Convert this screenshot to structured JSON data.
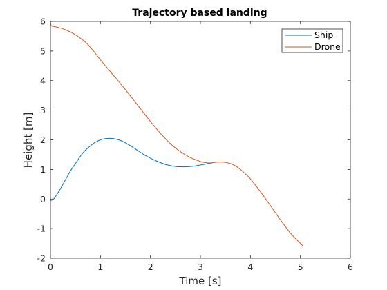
{
  "chart_data": {
    "type": "line",
    "title": "Trajectory based landing",
    "xlabel": "Time [s]",
    "ylabel": "Height [m]",
    "xlim": [
      0,
      6
    ],
    "ylim": [
      -2,
      6
    ],
    "xticks": [
      0,
      1,
      2,
      3,
      4,
      5,
      6
    ],
    "yticks": [
      -2,
      -1,
      0,
      1,
      2,
      3,
      4,
      5,
      6
    ],
    "grid": false,
    "legend_position": "top-right",
    "series": [
      {
        "name": "Ship",
        "color": "#0072bd",
        "x": [
          0,
          0.05,
          0.1,
          0.2,
          0.3,
          0.4,
          0.5,
          0.6,
          0.7,
          0.8,
          0.9,
          1.0,
          1.1,
          1.2,
          1.3,
          1.4,
          1.5,
          1.6,
          1.7,
          1.8,
          1.9,
          2.0,
          2.1,
          2.2,
          2.3,
          2.4,
          2.5,
          2.6,
          2.7,
          2.8,
          2.9,
          3.0,
          3.1,
          3.2,
          3.25
        ],
        "y": [
          -0.05,
          -0.02,
          0.08,
          0.35,
          0.65,
          0.95,
          1.2,
          1.45,
          1.65,
          1.8,
          1.92,
          2.0,
          2.04,
          2.05,
          2.03,
          1.98,
          1.9,
          1.8,
          1.69,
          1.58,
          1.47,
          1.38,
          1.3,
          1.23,
          1.17,
          1.13,
          1.1,
          1.09,
          1.09,
          1.1,
          1.12,
          1.15,
          1.18,
          1.21,
          1.23
        ]
      },
      {
        "name": "Drone",
        "color": "#d95319",
        "x": [
          0,
          0.02,
          0.1,
          0.3,
          0.5,
          0.7,
          0.8,
          0.9,
          1.0,
          1.2,
          1.4,
          1.6,
          1.8,
          2.0,
          2.2,
          2.4,
          2.6,
          2.8,
          3.0,
          3.1,
          3.2,
          3.3,
          3.4,
          3.5,
          3.6,
          3.7,
          3.8,
          3.9,
          4.0,
          4.2,
          4.4,
          4.6,
          4.8,
          5.0,
          5.05
        ],
        "y": [
          5.95,
          5.85,
          5.82,
          5.72,
          5.55,
          5.3,
          5.12,
          4.92,
          4.7,
          4.3,
          3.9,
          3.48,
          3.05,
          2.62,
          2.22,
          1.87,
          1.6,
          1.4,
          1.27,
          1.23,
          1.22,
          1.24,
          1.25,
          1.24,
          1.2,
          1.12,
          1.0,
          0.85,
          0.68,
          0.25,
          -0.22,
          -0.7,
          -1.15,
          -1.5,
          -1.58
        ]
      }
    ]
  }
}
